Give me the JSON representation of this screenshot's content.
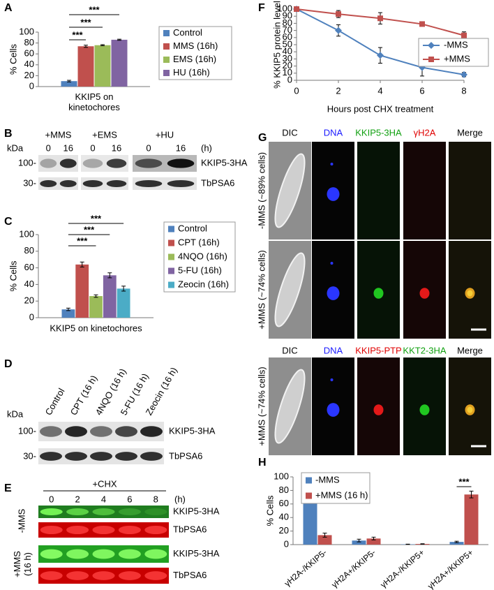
{
  "chart_data": [
    {
      "panel": "A",
      "type": "bar",
      "y_label": "% Cells",
      "categories": [
        "KKIP5 on\nkinetochores"
      ],
      "series": [
        {
          "name": "Control",
          "color": "#4f81bd",
          "values": [
            10
          ],
          "errors": [
            1.5
          ]
        },
        {
          "name": "MMS (16h)",
          "color": "#c0504d",
          "values": [
            74
          ],
          "errors": [
            2
          ]
        },
        {
          "name": "EMS (16h)",
          "color": "#9bbb59",
          "values": [
            76
          ],
          "errors": [
            1
          ]
        },
        {
          "name": "HU (16h)",
          "color": "#8064a2",
          "values": [
            86
          ],
          "errors": [
            1
          ]
        }
      ],
      "ylim": [
        0,
        100
      ],
      "yticks": [
        0,
        20,
        40,
        60,
        80,
        100
      ],
      "annotations": [
        "***",
        "***",
        "***"
      ]
    },
    {
      "panel": "C",
      "type": "bar",
      "y_label": "% Cells",
      "categories": [
        "KKIP5 on kinetochores"
      ],
      "series": [
        {
          "name": "Control",
          "color": "#4f81bd",
          "values": [
            10
          ],
          "errors": [
            1.5
          ]
        },
        {
          "name": "CPT (16h)",
          "color": "#c0504d",
          "values": [
            64
          ],
          "errors": [
            3
          ]
        },
        {
          "name": "4NQO (16h)",
          "color": "#9bbb59",
          "values": [
            26
          ],
          "errors": [
            1.5
          ]
        },
        {
          "name": "5-FU (16h)",
          "color": "#8064a2",
          "values": [
            51
          ],
          "errors": [
            3
          ]
        },
        {
          "name": "Zeocin (16h)",
          "color": "#4bacc6",
          "values": [
            35
          ],
          "errors": [
            3
          ]
        }
      ],
      "ylim": [
        0,
        100
      ],
      "yticks": [
        0,
        20,
        40,
        60,
        80,
        100
      ],
      "annotations": [
        "***",
        "***",
        "***"
      ]
    },
    {
      "panel": "F",
      "type": "line",
      "y_label": "% KKIP5 protein level",
      "x_label": "Hours post CHX treatment",
      "x": [
        0,
        2,
        4,
        6,
        8
      ],
      "series": [
        {
          "name": "-MMS",
          "color": "#4f81bd",
          "marker": "diamond",
          "values": [
            100,
            70,
            35,
            18,
            8
          ],
          "errors": [
            0,
            8,
            11,
            12,
            3
          ]
        },
        {
          "name": "+MMS",
          "color": "#c0504d",
          "marker": "square",
          "values": [
            100,
            93,
            87,
            79,
            63
          ],
          "errors": [
            0,
            5,
            8,
            3,
            5
          ]
        }
      ],
      "xlim": [
        0,
        8
      ],
      "xticks": [
        0,
        2,
        4,
        6,
        8
      ],
      "ylim": [
        0,
        100
      ],
      "yticks": [
        0,
        10,
        20,
        30,
        40,
        50,
        60,
        70,
        80,
        90,
        100
      ]
    },
    {
      "panel": "H",
      "type": "bar",
      "y_label": "% Cells",
      "categories": [
        "γH2A-/KKIP5-",
        "γH2A+/KKIP5-",
        "γH2A-/KKIP5+",
        "γH2A+/KKIP5+"
      ],
      "series": [
        {
          "name": "-MMS",
          "color": "#4f81bd",
          "values": [
            89,
            6,
            0.5,
            4
          ],
          "errors": [
            2,
            2,
            0.2,
            1
          ]
        },
        {
          "name": "+MMS (16 h)",
          "color": "#c0504d",
          "values": [
            14,
            9,
            1,
            74
          ],
          "errors": [
            3,
            2,
            0.3,
            5
          ]
        }
      ],
      "ylim": [
        0,
        100
      ],
      "yticks": [
        0,
        20,
        40,
        60,
        80,
        100
      ],
      "annotations": [
        "***"
      ]
    }
  ],
  "blots": {
    "B": {
      "panel": "B",
      "groups": [
        "+MMS",
        "+EMS",
        "+HU"
      ],
      "lanes": [
        "0",
        "16",
        "0",
        "16",
        "0",
        "16"
      ],
      "unit": "(h)",
      "kda": "kDa",
      "markers": [
        "100-",
        "30-"
      ],
      "rows": [
        "KKIP5-3HA",
        "TbPSA6"
      ]
    },
    "D": {
      "panel": "D",
      "lanes": [
        "Control",
        "CPT (16 h)",
        "4NQO (16 h)",
        "5-FU (16 h)",
        "Zeocin (16 h)"
      ],
      "kda": "kDa",
      "markers": [
        "100-",
        "30-"
      ],
      "rows": [
        "KKIP5-3HA",
        "TbPSA6"
      ]
    },
    "E": {
      "panel": "E",
      "treatment": "+CHX",
      "lanes": [
        "0",
        "2",
        "4",
        "6",
        "8"
      ],
      "unit": "(h)",
      "conditions": [
        "-MMS",
        "+MMS\n(16 h)"
      ],
      "rows": [
        "KKIP5-3HA",
        "TbPSA6",
        "KKIP5-3HA",
        "TbPSA6"
      ]
    }
  },
  "micrographs": {
    "panel": "G",
    "sets": [
      {
        "headers": [
          "DIC",
          "DNA",
          "KKIP5-3HA",
          "γH2A",
          "Merge"
        ],
        "rows": [
          "-MMS (~89% cells)",
          "+MMS (~74% cells)"
        ]
      },
      {
        "headers": [
          "DIC",
          "DNA",
          "KKIP5-PTP",
          "KKT2-3HA",
          "Merge"
        ],
        "rows": [
          "+MMS (~74% cells)"
        ]
      }
    ]
  }
}
